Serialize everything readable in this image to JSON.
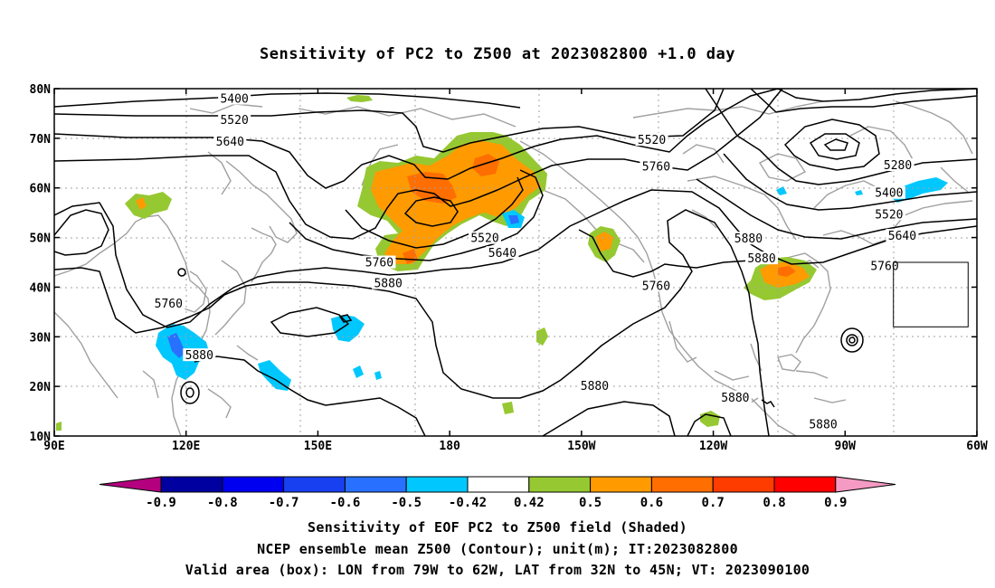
{
  "title": "Sensitivity of PC2 to Z500 at 2023082800 +1.0 day",
  "captions": {
    "line1": "Sensitivity of EOF PC2 to Z500 field (Shaded)",
    "line2": "NCEP ensemble mean Z500 (Contour); unit(m); IT:2023082800",
    "line3": "Valid area (box): LON from 79W to 62W, LAT from 32N to 45N; VT: 2023090100"
  },
  "map": {
    "lon_range": [
      90,
      300
    ],
    "lat_range": [
      10,
      80
    ],
    "lon_ticks": [
      {
        "lon": 90,
        "label": "90E"
      },
      {
        "lon": 120,
        "label": "120E"
      },
      {
        "lon": 150,
        "label": "150E"
      },
      {
        "lon": 180,
        "label": "180"
      },
      {
        "lon": 210,
        "label": "150W"
      },
      {
        "lon": 240,
        "label": "120W"
      },
      {
        "lon": 270,
        "label": "90W"
      },
      {
        "lon": 300,
        "label": "60W"
      }
    ],
    "lat_ticks": [
      {
        "lat": 80,
        "label": "80N"
      },
      {
        "lat": 70,
        "label": "70N"
      },
      {
        "lat": 60,
        "label": "60N"
      },
      {
        "lat": 50,
        "label": "50N"
      },
      {
        "lat": 40,
        "label": "40N"
      },
      {
        "lat": 30,
        "label": "30N"
      },
      {
        "lat": 20,
        "label": "20N"
      },
      {
        "lat": 10,
        "label": "10N"
      }
    ],
    "grid": true,
    "valid_box": {
      "lon_min": 281,
      "lon_max": 298,
      "lat_min": 32,
      "lat_max": 45
    },
    "contour_labels": [
      {
        "text": "5400",
        "lon": 131,
        "lat": 77.9
      },
      {
        "text": "5520",
        "lon": 131,
        "lat": 73.6
      },
      {
        "text": "5640",
        "lon": 130,
        "lat": 69.2
      },
      {
        "text": "5520",
        "lon": 226,
        "lat": 69.6
      },
      {
        "text": "5760",
        "lon": 227,
        "lat": 64.2
      },
      {
        "text": "5280",
        "lon": 282,
        "lat": 64.5
      },
      {
        "text": "5400",
        "lon": 280,
        "lat": 58.9
      },
      {
        "text": "5520",
        "lon": 280,
        "lat": 54.6
      },
      {
        "text": "5640",
        "lon": 283,
        "lat": 50.3
      },
      {
        "text": "5760",
        "lon": 279,
        "lat": 44.2
      },
      {
        "text": "5880",
        "lon": 248,
        "lat": 49.7
      },
      {
        "text": "5880",
        "lon": 251,
        "lat": 45.7
      },
      {
        "text": "5760",
        "lon": 227,
        "lat": 40.2
      },
      {
        "text": "5520",
        "lon": 188,
        "lat": 49.8
      },
      {
        "text": "5640",
        "lon": 192,
        "lat": 46.8
      },
      {
        "text": "5760",
        "lon": 164,
        "lat": 44.9
      },
      {
        "text": "5880",
        "lon": 166,
        "lat": 40.7
      },
      {
        "text": "5760",
        "lon": 116,
        "lat": 36.6
      },
      {
        "text": "5880",
        "lon": 123,
        "lat": 26.2
      },
      {
        "text": "5880",
        "lon": 213,
        "lat": 20.0
      },
      {
        "text": "5880",
        "lon": 245,
        "lat": 17.7
      },
      {
        "text": "5880",
        "lon": 265,
        "lat": 12.3
      }
    ]
  },
  "colorbar": {
    "labels": [
      "-0.9",
      "-0.8",
      "-0.7",
      "-0.6",
      "-0.5",
      "-0.42",
      "0.42",
      "0.5",
      "0.6",
      "0.7",
      "0.8",
      "0.9"
    ],
    "colors": [
      "#0000a0",
      "#0000f0",
      "#1840f0",
      "#2870ff",
      "#00c8ff",
      "#ffffff",
      "#96c832",
      "#ff9b00",
      "#ff6e00",
      "#ff3c00",
      "#ff0000"
    ],
    "low_end_color": "#b4007f",
    "high_end_color": "#f59bc3"
  },
  "colors": {
    "contour": "#000000",
    "coastline": "#a0a0a0",
    "grid": "#a0a0a0",
    "box": "#000000"
  }
}
